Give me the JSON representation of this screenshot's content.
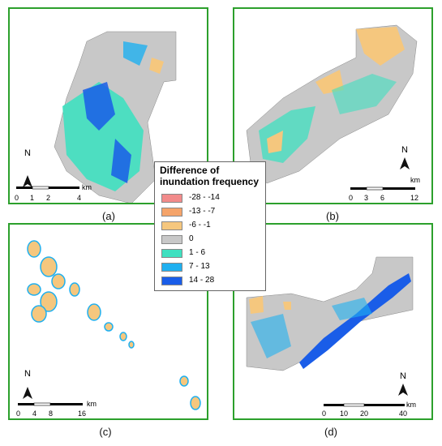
{
  "colors": {
    "frame": "#2ca02c",
    "class_neg_28_14": "#f28b8b",
    "class_neg_13_7": "#f5a46a",
    "class_neg_6_1": "#f5c77e",
    "class_zero": "#c8c8c8",
    "class_1_6": "#3fe0c0",
    "class_7_13": "#1fb0f0",
    "class_14_28": "#1a5de8"
  },
  "legend": {
    "title": "Difference of inundation frequency",
    "items": [
      {
        "label": "-28 - -14",
        "color": "#f28b8b"
      },
      {
        "label": "-13 - -7",
        "color": "#f5a46a"
      },
      {
        "label": "-6 - -1",
        "color": "#f5c77e"
      },
      {
        "label": "0",
        "color": "#c8c8c8"
      },
      {
        "label": "1 - 6",
        "color": "#3fe0c0"
      },
      {
        "label": "7 - 13",
        "color": "#1fb0f0"
      },
      {
        "label": "14 - 28",
        "color": "#1a5de8"
      }
    ]
  },
  "panels": {
    "a": {
      "caption": "(a)",
      "north": "N",
      "unit": "km",
      "ticks": [
        "0",
        "1",
        "2",
        "4"
      ]
    },
    "b": {
      "caption": "(b)",
      "north": "N",
      "unit": "km",
      "ticks": [
        "0",
        "3",
        "6",
        "12"
      ]
    },
    "c": {
      "caption": "(c)",
      "north": "N",
      "unit": "km",
      "ticks": [
        "0",
        "4",
        "8",
        "16"
      ]
    },
    "d": {
      "caption": "(d)",
      "north": "N",
      "unit": "km",
      "ticks": [
        "0",
        "10",
        "20",
        "40"
      ]
    }
  }
}
